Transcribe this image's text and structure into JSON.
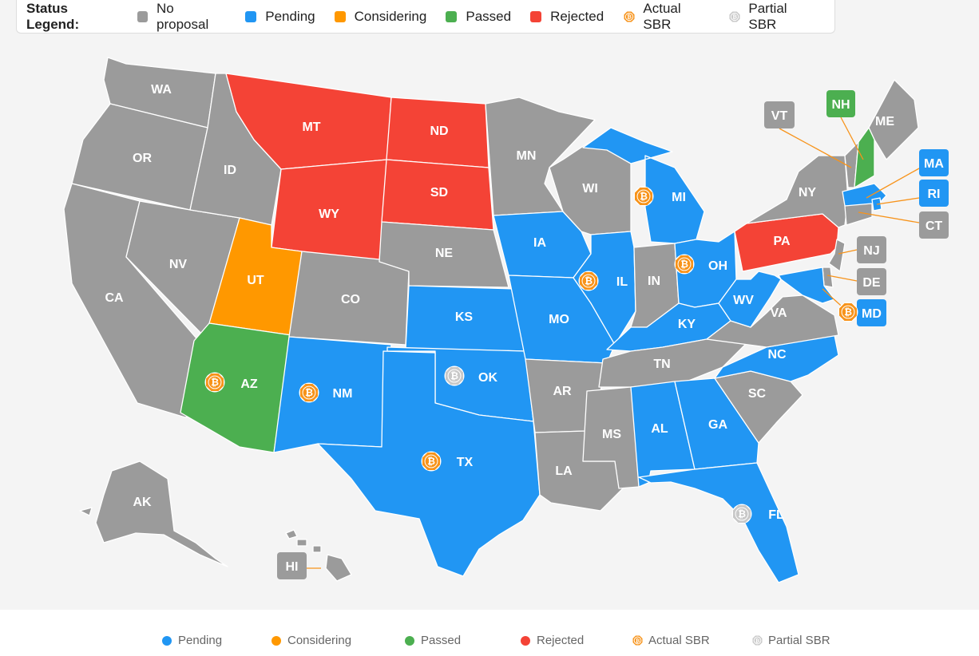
{
  "legend": {
    "title": "Status Legend:",
    "items": [
      {
        "label": "No proposal",
        "color": "#9b9b9b",
        "kind": "square"
      },
      {
        "label": "Pending",
        "color": "#2196f3",
        "kind": "square"
      },
      {
        "label": "Considering",
        "color": "#ff9800",
        "kind": "square"
      },
      {
        "label": "Passed",
        "color": "#4caf50",
        "kind": "square"
      },
      {
        "label": "Rejected",
        "color": "#f44336",
        "kind": "square"
      },
      {
        "label": "Actual SBR",
        "color": "#f7931a",
        "kind": "bitcoin-icon"
      },
      {
        "label": "Partial SBR",
        "color": "#c8c8c8",
        "kind": "bitcoin-icon"
      }
    ]
  },
  "bottom_legend": [
    {
      "label": "Pending",
      "color": "#2196f3",
      "kind": "dot"
    },
    {
      "label": "Considering",
      "color": "#ff9800",
      "kind": "dot"
    },
    {
      "label": "Passed",
      "color": "#4caf50",
      "kind": "dot"
    },
    {
      "label": "Rejected",
      "color": "#f44336",
      "kind": "dot"
    },
    {
      "label": "Actual SBR",
      "color": "#f7931a",
      "kind": "bitcoin-icon"
    },
    {
      "label": "Partial SBR",
      "color": "#c8c8c8",
      "kind": "bitcoin-icon"
    }
  ],
  "colors": {
    "none": "#9b9b9b",
    "pending": "#2196f3",
    "considering": "#ff9800",
    "passed": "#4caf50",
    "rejected": "#f44336",
    "actual": "#f7931a",
    "partial": "#c8c8c8"
  },
  "states": {
    "WA": {
      "label": "WA",
      "status": "none"
    },
    "OR": {
      "label": "OR",
      "status": "none"
    },
    "CA": {
      "label": "CA",
      "status": "none"
    },
    "NV": {
      "label": "NV",
      "status": "none"
    },
    "ID": {
      "label": "ID",
      "status": "none"
    },
    "MT": {
      "label": "MT",
      "status": "rejected"
    },
    "WY": {
      "label": "WY",
      "status": "rejected"
    },
    "UT": {
      "label": "UT",
      "status": "considering"
    },
    "AZ": {
      "label": "AZ",
      "status": "passed",
      "sbr": "actual"
    },
    "CO": {
      "label": "CO",
      "status": "none"
    },
    "NM": {
      "label": "NM",
      "status": "pending",
      "sbr": "actual"
    },
    "ND": {
      "label": "ND",
      "status": "rejected"
    },
    "SD": {
      "label": "SD",
      "status": "rejected"
    },
    "NE": {
      "label": "NE",
      "status": "none"
    },
    "KS": {
      "label": "KS",
      "status": "pending"
    },
    "OK": {
      "label": "OK",
      "status": "pending",
      "sbr": "partial"
    },
    "TX": {
      "label": "TX",
      "status": "pending",
      "sbr": "actual"
    },
    "MN": {
      "label": "MN",
      "status": "none"
    },
    "IA": {
      "label": "IA",
      "status": "pending"
    },
    "MO": {
      "label": "MO",
      "status": "pending"
    },
    "AR": {
      "label": "AR",
      "status": "none"
    },
    "LA": {
      "label": "LA",
      "status": "none"
    },
    "WI": {
      "label": "WI",
      "status": "none"
    },
    "IL": {
      "label": "IL",
      "status": "pending",
      "sbr": "actual"
    },
    "MI": {
      "label": "MI",
      "status": "pending",
      "sbr": "actual"
    },
    "IN": {
      "label": "IN",
      "status": "none"
    },
    "OH": {
      "label": "OH",
      "status": "pending",
      "sbr": "actual"
    },
    "KY": {
      "label": "KY",
      "status": "pending"
    },
    "TN": {
      "label": "TN",
      "status": "none"
    },
    "MS": {
      "label": "MS",
      "status": "none"
    },
    "AL": {
      "label": "AL",
      "status": "pending"
    },
    "GA": {
      "label": "GA",
      "status": "pending"
    },
    "FL": {
      "label": "FL",
      "status": "pending",
      "sbr": "partial"
    },
    "SC": {
      "label": "SC",
      "status": "none"
    },
    "NC": {
      "label": "NC",
      "status": "pending"
    },
    "VA": {
      "label": "VA",
      "status": "none"
    },
    "WV": {
      "label": "WV",
      "status": "pending"
    },
    "PA": {
      "label": "PA",
      "status": "rejected"
    },
    "NY": {
      "label": "NY",
      "status": "none"
    },
    "ME": {
      "label": "ME",
      "status": "none"
    },
    "VT": {
      "label": "VT",
      "status": "none"
    },
    "NH": {
      "label": "NH",
      "status": "passed"
    },
    "MA": {
      "label": "MA",
      "status": "pending"
    },
    "RI": {
      "label": "RI",
      "status": "pending"
    },
    "CT": {
      "label": "CT",
      "status": "none"
    },
    "NJ": {
      "label": "NJ",
      "status": "none"
    },
    "DE": {
      "label": "DE",
      "status": "none"
    },
    "MD": {
      "label": "MD",
      "status": "pending",
      "sbr": "actual"
    },
    "AK": {
      "label": "AK",
      "status": "none"
    },
    "HI": {
      "label": "HI",
      "status": "none"
    }
  }
}
